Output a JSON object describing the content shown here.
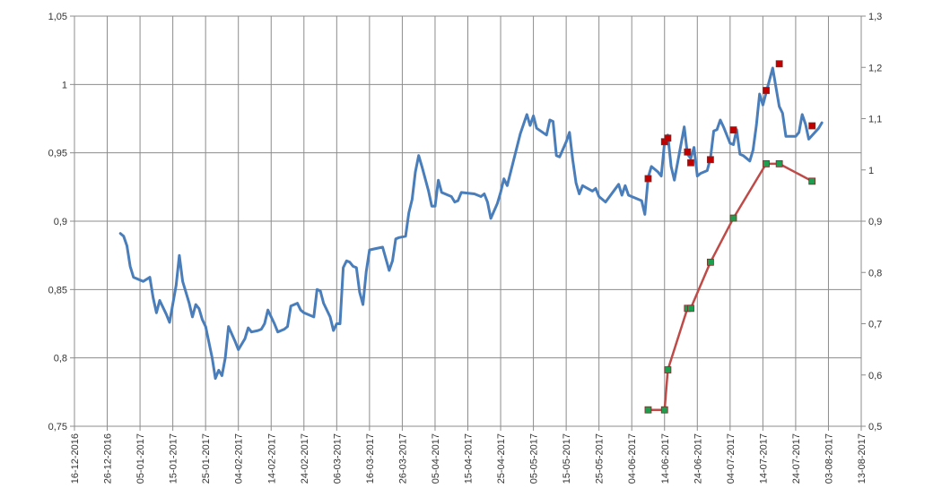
{
  "chart_data": {
    "type": "line",
    "title": "",
    "xlabel": "",
    "ylabel": "",
    "grid": true,
    "legend": "none",
    "x_ticks": [
      "16-12-2016",
      "26-12-2016",
      "05-01-2017",
      "15-01-2017",
      "25-01-2017",
      "04-02-2017",
      "14-02-2017",
      "24-02-2017",
      "06-03-2017",
      "16-03-2017",
      "26-03-2017",
      "05-04-2017",
      "15-04-2017",
      "25-04-2017",
      "05-05-2017",
      "15-05-2017",
      "25-05-2017",
      "04-06-2017",
      "14-06-2017",
      "24-06-2017",
      "04-07-2017",
      "14-07-2017",
      "24-07-2017",
      "03-08-2017",
      "13-08-2017"
    ],
    "xlim": [
      "16-12-2016",
      "13-08-2017"
    ],
    "y_left": {
      "ylim": [
        0.75,
        1.05
      ],
      "ticks": [
        "0,75",
        "0,8",
        "0,85",
        "0,9",
        "0,95",
        "1",
        "1,05"
      ]
    },
    "y_right": {
      "ylim": [
        0.5,
        1.3
      ],
      "ticks": [
        "0,5",
        "0,6",
        "0,7",
        "0,8",
        "0,9",
        "1",
        "1,1",
        "1,2",
        "1,3"
      ]
    },
    "series": [
      {
        "axis": "left",
        "color": "#4a7ebb",
        "points": [
          [
            "2016-12-30",
            0.891
          ],
          [
            "2016-12-31",
            0.889
          ],
          [
            "2017-01-01",
            0.882
          ],
          [
            "2017-01-02",
            0.867
          ],
          [
            "2017-01-03",
            0.859
          ],
          [
            "2017-01-06",
            0.856
          ],
          [
            "2017-01-08",
            0.859
          ],
          [
            "2017-01-09",
            0.844
          ],
          [
            "2017-01-10",
            0.833
          ],
          [
            "2017-01-11",
            0.842
          ],
          [
            "2017-01-13",
            0.832
          ],
          [
            "2017-01-14",
            0.826
          ],
          [
            "2017-01-16",
            0.853
          ],
          [
            "2017-01-17",
            0.875
          ],
          [
            "2017-01-18",
            0.856
          ],
          [
            "2017-01-20",
            0.84
          ],
          [
            "2017-01-21",
            0.83
          ],
          [
            "2017-01-22",
            0.839
          ],
          [
            "2017-01-23",
            0.836
          ],
          [
            "2017-01-24",
            0.828
          ],
          [
            "2017-01-25",
            0.823
          ],
          [
            "2017-01-27",
            0.8
          ],
          [
            "2017-01-28",
            0.785
          ],
          [
            "2017-01-29",
            0.791
          ],
          [
            "2017-01-30",
            0.787
          ],
          [
            "2017-01-31",
            0.8
          ],
          [
            "2017-02-01",
            0.823
          ],
          [
            "2017-02-03",
            0.812
          ],
          [
            "2017-02-04",
            0.806
          ],
          [
            "2017-02-06",
            0.814
          ],
          [
            "2017-02-07",
            0.822
          ],
          [
            "2017-02-08",
            0.819
          ],
          [
            "2017-02-10",
            0.82
          ],
          [
            "2017-02-11",
            0.821
          ],
          [
            "2017-02-12",
            0.825
          ],
          [
            "2017-02-13",
            0.835
          ],
          [
            "2017-02-15",
            0.825
          ],
          [
            "2017-02-16",
            0.819
          ],
          [
            "2017-02-18",
            0.821
          ],
          [
            "2017-02-19",
            0.823
          ],
          [
            "2017-02-20",
            0.838
          ],
          [
            "2017-02-22",
            0.84
          ],
          [
            "2017-02-23",
            0.835
          ],
          [
            "2017-02-24",
            0.833
          ],
          [
            "2017-02-27",
            0.83
          ],
          [
            "2017-02-28",
            0.85
          ],
          [
            "2017-03-01",
            0.849
          ],
          [
            "2017-03-02",
            0.84
          ],
          [
            "2017-03-04",
            0.83
          ],
          [
            "2017-03-05",
            0.82
          ],
          [
            "2017-03-06",
            0.825
          ],
          [
            "2017-03-07",
            0.825
          ],
          [
            "2017-03-08",
            0.866
          ],
          [
            "2017-03-09",
            0.871
          ],
          [
            "2017-03-10",
            0.87
          ],
          [
            "2017-03-11",
            0.867
          ],
          [
            "2017-03-12",
            0.866
          ],
          [
            "2017-03-13",
            0.848
          ],
          [
            "2017-03-14",
            0.839
          ],
          [
            "2017-03-15",
            0.863
          ],
          [
            "2017-03-16",
            0.879
          ],
          [
            "2017-03-18",
            0.88
          ],
          [
            "2017-03-20",
            0.881
          ],
          [
            "2017-03-22",
            0.864
          ],
          [
            "2017-03-23",
            0.871
          ],
          [
            "2017-03-24",
            0.887
          ],
          [
            "2017-03-25",
            0.888
          ],
          [
            "2017-03-27",
            0.889
          ],
          [
            "2017-03-28",
            0.906
          ],
          [
            "2017-03-29",
            0.916
          ],
          [
            "2017-03-30",
            0.936
          ],
          [
            "2017-03-31",
            0.948
          ],
          [
            "2017-04-01",
            0.94
          ],
          [
            "2017-04-03",
            0.922
          ],
          [
            "2017-04-04",
            0.911
          ],
          [
            "2017-04-05",
            0.911
          ],
          [
            "2017-04-06",
            0.93
          ],
          [
            "2017-04-07",
            0.921
          ],
          [
            "2017-04-10",
            0.918
          ],
          [
            "2017-04-11",
            0.914
          ],
          [
            "2017-04-12",
            0.915
          ],
          [
            "2017-04-13",
            0.921
          ],
          [
            "2017-04-17",
            0.92
          ],
          [
            "2017-04-18",
            0.919
          ],
          [
            "2017-04-19",
            0.918
          ],
          [
            "2017-04-20",
            0.92
          ],
          [
            "2017-04-21",
            0.914
          ],
          [
            "2017-04-22",
            0.902
          ],
          [
            "2017-04-24",
            0.913
          ],
          [
            "2017-04-25",
            0.921
          ],
          [
            "2017-04-26",
            0.931
          ],
          [
            "2017-04-27",
            0.926
          ],
          [
            "2017-05-01",
            0.964
          ],
          [
            "2017-05-03",
            0.978
          ],
          [
            "2017-05-04",
            0.97
          ],
          [
            "2017-05-05",
            0.977
          ],
          [
            "2017-05-06",
            0.968
          ],
          [
            "2017-05-09",
            0.963
          ],
          [
            "2017-05-10",
            0.974
          ],
          [
            "2017-05-11",
            0.973
          ],
          [
            "2017-05-12",
            0.948
          ],
          [
            "2017-05-13",
            0.947
          ],
          [
            "2017-05-15",
            0.958
          ],
          [
            "2017-05-16",
            0.965
          ],
          [
            "2017-05-17",
            0.945
          ],
          [
            "2017-05-18",
            0.928
          ],
          [
            "2017-05-19",
            0.92
          ],
          [
            "2017-05-20",
            0.926
          ],
          [
            "2017-05-23",
            0.922
          ],
          [
            "2017-05-24",
            0.924
          ],
          [
            "2017-05-25",
            0.918
          ],
          [
            "2017-05-27",
            0.914
          ],
          [
            "2017-05-31",
            0.927
          ],
          [
            "2017-06-01",
            0.919
          ],
          [
            "2017-06-02",
            0.926
          ],
          [
            "2017-06-03",
            0.919
          ],
          [
            "2017-06-07",
            0.915
          ],
          [
            "2017-06-08",
            0.905
          ],
          [
            "2017-06-09",
            0.932
          ],
          [
            "2017-06-10",
            0.94
          ],
          [
            "2017-06-12",
            0.936
          ],
          [
            "2017-06-13",
            0.933
          ],
          [
            "2017-06-14",
            0.958
          ],
          [
            "2017-06-15",
            0.963
          ],
          [
            "2017-06-16",
            0.94
          ],
          [
            "2017-06-17",
            0.93
          ],
          [
            "2017-06-20",
            0.969
          ],
          [
            "2017-06-21",
            0.949
          ],
          [
            "2017-06-22",
            0.946
          ],
          [
            "2017-06-23",
            0.954
          ],
          [
            "2017-06-24",
            0.933
          ],
          [
            "2017-06-25",
            0.935
          ],
          [
            "2017-06-27",
            0.937
          ],
          [
            "2017-06-28",
            0.946
          ],
          [
            "2017-06-29",
            0.966
          ],
          [
            "2017-06-30",
            0.967
          ],
          [
            "2017-07-01",
            0.974
          ],
          [
            "2017-07-02",
            0.969
          ],
          [
            "2017-07-04",
            0.957
          ],
          [
            "2017-07-05",
            0.956
          ],
          [
            "2017-07-06",
            0.967
          ],
          [
            "2017-07-07",
            0.949
          ],
          [
            "2017-07-08",
            0.948
          ],
          [
            "2017-07-10",
            0.944
          ],
          [
            "2017-07-11",
            0.952
          ],
          [
            "2017-07-12",
            0.97
          ],
          [
            "2017-07-13",
            0.993
          ],
          [
            "2017-07-14",
            0.985
          ],
          [
            "2017-07-15",
            0.994
          ],
          [
            "2017-07-17",
            1.012
          ],
          [
            "2017-07-19",
            0.984
          ],
          [
            "2017-07-20",
            0.979
          ],
          [
            "2017-07-21",
            0.962
          ],
          [
            "2017-07-24",
            0.962
          ],
          [
            "2017-07-25",
            0.965
          ],
          [
            "2017-07-26",
            0.978
          ],
          [
            "2017-07-27",
            0.971
          ],
          [
            "2017-07-28",
            0.96
          ],
          [
            "2017-07-31",
            0.968
          ],
          [
            "2017-08-01",
            0.972
          ]
        ]
      },
      {
        "axis": "right",
        "color": "#be4b48",
        "marker_color": "#1e9e4e",
        "points": [
          [
            "2017-06-09",
            0.532
          ],
          [
            "2017-06-14",
            0.532
          ],
          [
            "2017-06-15",
            0.61
          ],
          [
            "2017-06-21",
            0.73
          ],
          [
            "2017-06-22",
            0.73
          ],
          [
            "2017-06-28",
            0.82
          ],
          [
            "2017-07-05",
            0.906
          ],
          [
            "2017-07-15",
            1.012
          ],
          [
            "2017-07-19",
            1.012
          ],
          [
            "2017-07-29",
            0.978
          ]
        ]
      },
      {
        "axis": "right",
        "color": "#c00000",
        "line": "none",
        "marker_color": "#c00000",
        "points": [
          [
            "2017-06-09",
            0.983
          ],
          [
            "2017-06-14",
            1.055
          ],
          [
            "2017-06-15",
            1.062
          ],
          [
            "2017-06-21",
            1.035
          ],
          [
            "2017-06-22",
            1.014
          ],
          [
            "2017-06-28",
            1.02
          ],
          [
            "2017-07-05",
            1.078
          ],
          [
            "2017-07-15",
            1.155
          ],
          [
            "2017-07-19",
            1.207
          ],
          [
            "2017-07-29",
            1.086
          ]
        ]
      }
    ]
  }
}
